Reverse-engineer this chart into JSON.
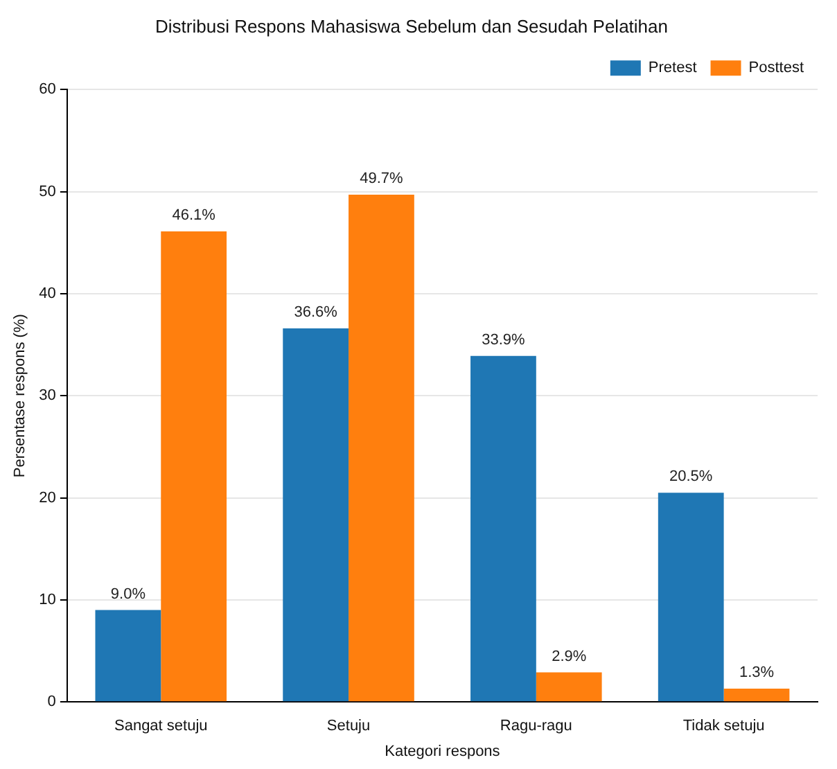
{
  "chart_data": {
    "type": "bar",
    "title": "Distribusi Respons Mahasiswa Sebelum dan Sesudah Pelatihan",
    "xlabel": "Kategori respons",
    "ylabel": "Persentase respons (%)",
    "categories": [
      "Sangat setuju",
      "Setuju",
      "Ragu-ragu",
      "Tidak setuju"
    ],
    "series": [
      {
        "name": "Pretest",
        "color": "#1f77b4",
        "values": [
          9.0,
          36.6,
          33.9,
          20.5
        ],
        "value_labels": [
          "9.0%",
          "36.6%",
          "33.9%",
          "20.5%"
        ]
      },
      {
        "name": "Posttest",
        "color": "#ff7f0e",
        "values": [
          46.1,
          49.7,
          2.9,
          1.3
        ],
        "value_labels": [
          "46.1%",
          "49.7%",
          "2.9%",
          "1.3%"
        ]
      }
    ],
    "ylim": [
      0,
      60
    ],
    "yticks": [
      0,
      10,
      20,
      30,
      40,
      50,
      60
    ],
    "grid": "y",
    "legend": "top right"
  }
}
